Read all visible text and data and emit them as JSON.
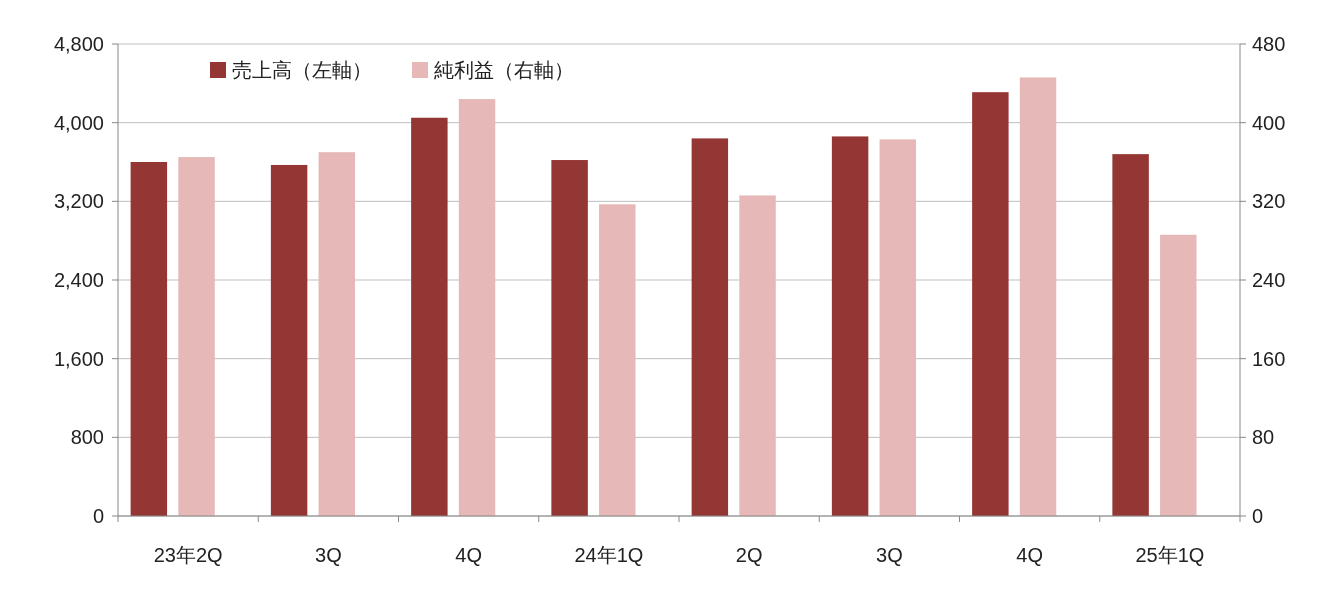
{
  "chart_data": {
    "type": "bar",
    "categories": [
      "23年2Q",
      "3Q",
      "4Q",
      "24年1Q",
      "2Q",
      "3Q",
      "4Q",
      "25年1Q"
    ],
    "series": [
      {
        "name": "売上高（左軸）",
        "color": "#943634",
        "values": [
          3600,
          3570,
          4050,
          3620,
          3840,
          3860,
          4310,
          3680
        ]
      },
      {
        "name": "純利益（右軸）",
        "color": "#e6b9b8",
        "axis": "y2",
        "values": [
          365,
          370,
          424,
          317,
          326,
          383,
          446,
          286
        ]
      }
    ],
    "ylim": [
      0,
      4800
    ],
    "yticks": [
      0,
      800,
      {
        "value": 1600,
        "label": "1,600"
      },
      {
        "value": 2400,
        "label": "2,400"
      },
      {
        "value": 3200,
        "label": "3,200"
      },
      {
        "value": 4000,
        "label": "4,000"
      },
      {
        "value": 4800,
        "label": "4,800"
      }
    ],
    "y2lim": [
      0,
      480
    ],
    "y2ticks": [
      0,
      80,
      160,
      240,
      320,
      400,
      480
    ],
    "grid": "y",
    "legend": "top left"
  }
}
